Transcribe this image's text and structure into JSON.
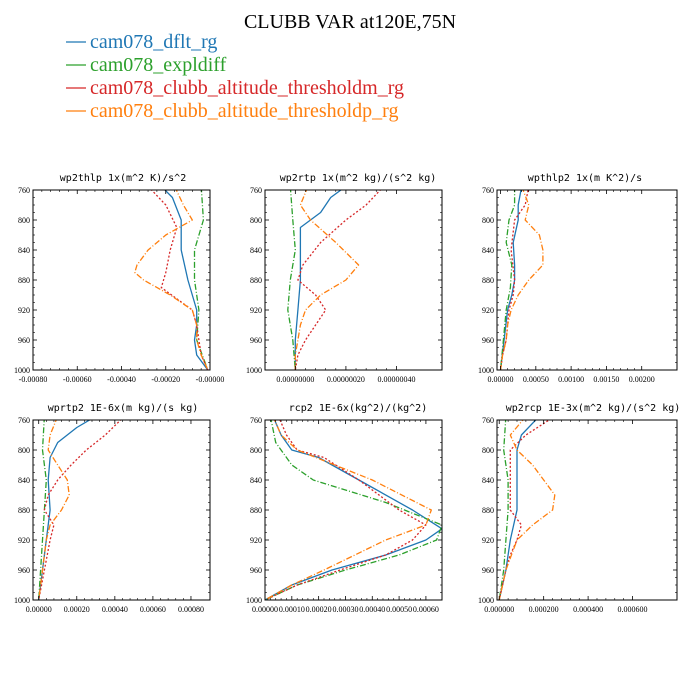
{
  "figure": {
    "title": "CLUBB VAR at120E,75N"
  },
  "legend": [
    {
      "label": "cam078_dflt_rg",
      "color": "#1f77b4",
      "dash": "solid"
    },
    {
      "label": "cam078_expldiff",
      "color": "#2ca02c",
      "dash": "dashdot"
    },
    {
      "label": "cam078_clubb_altitude_thresholdm_rg",
      "color": "#d62728",
      "dash": "dot"
    },
    {
      "label": "cam078_clubb_altitude_thresholdp_rg",
      "color": "#ff7f0e",
      "dash": "dashdot"
    }
  ],
  "chart_data": [
    {
      "type": "line",
      "title": "wp2thlp  1x(m^2 K)/s^2",
      "xlim": [
        -0.0008,
        0.0
      ],
      "ylim": [
        760,
        1000
      ],
      "y_inverted": true,
      "x_ticks": [
        -0.0008,
        -0.0006,
        -0.0004,
        -0.0002,
        0.0
      ],
      "x_tick_labels": [
        "-0.00080",
        "-0.00060",
        "-0.00040",
        "-0.00020",
        "-0.00000"
      ],
      "y_ticks": [
        760,
        800,
        840,
        880,
        920,
        960,
        1000
      ],
      "y_tick_labels": [
        "760",
        "800",
        "840",
        "880",
        "920",
        "960",
        "1000"
      ],
      "series": [
        {
          "name": "cam078_dflt_rg",
          "y": [
            755,
            770,
            800,
            840,
            880,
            920,
            940,
            960,
            980,
            1000
          ],
          "x": [
            -0.00022,
            -0.00017,
            -0.00013,
            -0.00013,
            -0.0001,
            -6e-05,
            -6e-05,
            -7e-05,
            -6e-05,
            -1e-05
          ]
        },
        {
          "name": "cam078_expldiff",
          "y": [
            755,
            800,
            840,
            880,
            920,
            960,
            1000
          ],
          "x": [
            -4e-05,
            -3e-05,
            -7e-05,
            -7e-05,
            -5e-05,
            -6e-05,
            -1e-05
          ]
        },
        {
          "name": "cam078_clubb_altitude_thresholdm_rg",
          "y": [
            755,
            780,
            810,
            840,
            870,
            890,
            905,
            920,
            940,
            960,
            980,
            1000
          ],
          "x": [
            -0.00028,
            -0.0002,
            -0.00015,
            -0.00018,
            -0.0002,
            -0.00022,
            -0.00015,
            -8e-05,
            -6e-05,
            -5e-05,
            -4e-05,
            -1e-05
          ]
        },
        {
          "name": "cam078_clubb_altitude_thresholdp_rg",
          "y": [
            755,
            780,
            800,
            820,
            840,
            860,
            870,
            880,
            900,
            920,
            940,
            960,
            980,
            1000
          ],
          "x": [
            -0.00016,
            -0.00012,
            -8e-05,
            -0.0002,
            -0.00028,
            -0.00033,
            -0.00034,
            -0.0003,
            -0.00018,
            -8e-05,
            -6e-05,
            -6e-05,
            -4e-05,
            -1e-05
          ]
        }
      ]
    },
    {
      "type": "line",
      "title": "wp2rtp  1x(m^2 kg)/(s^2 kg)",
      "xlim": [
        -1.2e-07,
        5.8e-07
      ],
      "ylim": [
        760,
        1000
      ],
      "y_inverted": true,
      "x_ticks": [
        0.0,
        2e-07,
        4e-07
      ],
      "x_tick_labels": [
        "0.00000000",
        "0.00000020",
        "0.00000040"
      ],
      "y_ticks": [
        760,
        800,
        840,
        880,
        920,
        960,
        1000
      ],
      "y_tick_labels": [
        "760",
        "800",
        "840",
        "880",
        "920",
        "960",
        "1000"
      ],
      "series": [
        {
          "name": "cam078_dflt_rg",
          "y": [
            755,
            770,
            790,
            810,
            840,
            880,
            920,
            960,
            1000
          ],
          "x": [
            2e-07,
            1.4e-07,
            1e-07,
            2e-08,
            2e-08,
            2e-08,
            1e-08,
            0.0,
            0.0
          ]
        },
        {
          "name": "cam078_expldiff",
          "y": [
            755,
            800,
            840,
            880,
            920,
            960,
            1000
          ],
          "x": [
            -2e-08,
            -1e-08,
            0.0,
            -2e-08,
            -3e-08,
            -1e-08,
            0.0
          ]
        },
        {
          "name": "cam078_clubb_altitude_thresholdm_rg",
          "y": [
            755,
            780,
            800,
            830,
            860,
            880,
            900,
            920,
            940,
            960,
            980,
            1000
          ],
          "x": [
            3.5e-07,
            2.8e-07,
            2e-07,
            1e-07,
            3e-08,
            1e-08,
            8e-08,
            1.2e-07,
            8e-08,
            4e-08,
            1e-08,
            0.0
          ]
        },
        {
          "name": "cam078_clubb_altitude_thresholdp_rg",
          "y": [
            755,
            780,
            800,
            830,
            860,
            880,
            900,
            920,
            940,
            960,
            980,
            1000
          ],
          "x": [
            5e-08,
            2e-08,
            6e-08,
            1.6e-07,
            2.5e-07,
            2e-07,
            1e-07,
            4e-08,
            2e-08,
            1e-08,
            0.0,
            0.0
          ]
        }
      ]
    },
    {
      "type": "line",
      "title": "wpthlp2  1x(m K^2)/s",
      "xlim": [
        -5e-05,
        0.0025
      ],
      "ylim": [
        760,
        1000
      ],
      "y_inverted": true,
      "x_ticks": [
        0.0,
        0.0005,
        0.001,
        0.0015,
        0.002
      ],
      "x_tick_labels": [
        "0.00000",
        "0.00050",
        "0.00100",
        "0.00150",
        "0.00200"
      ],
      "y_ticks": [
        760,
        800,
        840,
        880,
        920,
        960,
        1000
      ],
      "y_tick_labels": [
        "760",
        "800",
        "840",
        "880",
        "920",
        "960",
        "1000"
      ],
      "series": [
        {
          "name": "cam078_dflt_rg",
          "y": [
            755,
            780,
            800,
            830,
            860,
            880,
            900,
            920,
            960,
            1000
          ],
          "x": [
            0.0003,
            0.00025,
            0.00025,
            0.00018,
            0.0002,
            0.0002,
            0.00016,
            0.0001,
            5e-05,
            0.0
          ]
        },
        {
          "name": "cam078_expldiff",
          "y": [
            755,
            780,
            800,
            830,
            860,
            890,
            920,
            960,
            1000
          ],
          "x": [
            0.0002,
            0.0002,
            0.00012,
            8e-05,
            0.00016,
            0.00014,
            8e-05,
            4e-05,
            0.0
          ]
        },
        {
          "name": "cam078_clubb_altitude_thresholdm_rg",
          "y": [
            755,
            780,
            800,
            840,
            880,
            900,
            920,
            940,
            960,
            980,
            1000
          ],
          "x": [
            0.0004,
            0.00035,
            0.0002,
            0.00015,
            0.0002,
            0.00018,
            0.00012,
            0.0001,
            8e-05,
            3e-05,
            0.0
          ]
        },
        {
          "name": "cam078_clubb_altitude_thresholdp_rg",
          "y": [
            755,
            780,
            800,
            820,
            840,
            860,
            880,
            900,
            920,
            940,
            960,
            980,
            1000
          ],
          "x": [
            0.0003,
            0.0004,
            0.00035,
            0.00055,
            0.0006,
            0.0006,
            0.0004,
            0.00025,
            0.00015,
            0.0001,
            8e-05,
            3e-05,
            0.0
          ]
        }
      ]
    },
    {
      "type": "line",
      "title": "wprtp2  1E-6x(m kg)/(s kg)",
      "xlim": [
        -3e-05,
        0.0009
      ],
      "ylim": [
        760,
        1000
      ],
      "y_inverted": true,
      "x_ticks": [
        0.0,
        0.0002,
        0.0004,
        0.0006,
        0.0008
      ],
      "x_tick_labels": [
        "0.00000",
        "0.00020",
        "0.00040",
        "0.00060",
        "0.00080"
      ],
      "y_ticks": [
        760,
        800,
        840,
        880,
        920,
        960,
        1000
      ],
      "y_tick_labels": [
        "760",
        "800",
        "840",
        "880",
        "920",
        "960",
        "1000"
      ],
      "series": [
        {
          "name": "cam078_dflt_rg",
          "y": [
            755,
            770,
            790,
            810,
            840,
            880,
            920,
            960,
            1000
          ],
          "x": [
            0.0003,
            0.0002,
            0.0001,
            6e-05,
            5e-05,
            6e-05,
            4e-05,
            2e-05,
            0.0
          ]
        },
        {
          "name": "cam078_expldiff",
          "y": [
            755,
            800,
            840,
            880,
            920,
            960,
            1000
          ],
          "x": [
            3e-05,
            2e-05,
            4e-05,
            3e-05,
            2e-05,
            1e-05,
            0.0
          ]
        },
        {
          "name": "cam078_clubb_altitude_thresholdm_rg",
          "y": [
            755,
            780,
            800,
            820,
            840,
            860,
            880,
            900,
            920,
            960,
            1000
          ],
          "x": [
            0.00045,
            0.00035,
            0.00025,
            0.00017,
            0.0001,
            5e-05,
            3e-05,
            8e-05,
            6e-05,
            3e-05,
            0.0
          ]
        },
        {
          "name": "cam078_clubb_altitude_thresholdp_rg",
          "y": [
            755,
            780,
            800,
            820,
            840,
            860,
            880,
            900,
            920,
            960,
            1000
          ],
          "x": [
            0.0001,
            6e-05,
            5e-05,
            0.0001,
            0.00015,
            0.00016,
            0.00012,
            6e-05,
            4e-05,
            2e-05,
            0.0
          ]
        }
      ]
    },
    {
      "type": "line",
      "title": "rcp2  1E-6x(kg^2)/(kg^2)",
      "xlim": [
        0.0,
        0.00066
      ],
      "ylim": [
        760,
        1000
      ],
      "y_inverted": true,
      "x_ticks": [
        0.0,
        0.0001,
        0.0002,
        0.0003,
        0.0004,
        0.0005,
        0.0006
      ],
      "x_tick_labels": [
        "0.00000",
        "0.00010",
        "0.00020",
        "0.00030",
        "0.00040",
        "0.00050",
        "0.00060"
      ],
      "y_ticks": [
        760,
        800,
        840,
        880,
        920,
        960,
        1000
      ],
      "y_tick_labels": [
        "760",
        "800",
        "840",
        "880",
        "920",
        "960",
        "1000"
      ],
      "series": [
        {
          "name": "cam078_dflt_rg",
          "y": [
            755,
            780,
            800,
            810,
            840,
            880,
            905,
            920,
            940,
            960,
            980,
            1000
          ],
          "x": [
            3e-05,
            6e-05,
            0.0001,
            0.0002,
            0.00035,
            0.00055,
            0.00066,
            0.0006,
            0.00045,
            0.00025,
            0.0001,
            0.0
          ]
        },
        {
          "name": "cam078_expldiff",
          "y": [
            755,
            790,
            820,
            840,
            870,
            900,
            920,
            940,
            960,
            980,
            1000
          ],
          "x": [
            2e-05,
            4e-05,
            0.0001,
            0.00018,
            0.00045,
            0.00066,
            0.00064,
            0.0005,
            0.0003,
            0.00012,
            0.0
          ]
        },
        {
          "name": "cam078_clubb_altitude_thresholdm_rg",
          "y": [
            755,
            780,
            800,
            810,
            840,
            880,
            900,
            920,
            940,
            960,
            980,
            1000
          ],
          "x": [
            5e-05,
            8e-05,
            0.00012,
            0.00022,
            0.00035,
            0.0005,
            0.0006,
            0.00055,
            0.00045,
            0.00028,
            0.00012,
            0.0
          ]
        },
        {
          "name": "cam078_clubb_altitude_thresholdp_rg",
          "y": [
            755,
            780,
            800,
            840,
            880,
            900,
            920,
            960,
            980,
            1000
          ],
          "x": [
            3e-05,
            6e-05,
            0.00012,
            0.0004,
            0.00062,
            0.0006,
            0.00045,
            0.00022,
            0.0001,
            0.0
          ]
        }
      ]
    },
    {
      "type": "line",
      "title": "wp2rcp  1E-3x(m^2 kg)/(s^2 kg)",
      "xlim": [
        -1e-05,
        0.0008
      ],
      "ylim": [
        760,
        1000
      ],
      "y_inverted": true,
      "x_ticks": [
        0.0,
        0.0002,
        0.0004,
        0.0006
      ],
      "x_tick_labels": [
        "0.000000",
        "0.000200",
        "0.000400",
        "0.000600"
      ],
      "y_ticks": [
        760,
        800,
        840,
        880,
        920,
        960,
        1000
      ],
      "y_tick_labels": [
        "760",
        "800",
        "840",
        "880",
        "920",
        "960",
        "1000"
      ],
      "series": [
        {
          "name": "cam078_dflt_rg",
          "y": [
            755,
            780,
            800,
            840,
            880,
            920,
            960,
            1000
          ],
          "x": [
            0.00018,
            0.0001,
            8e-05,
            8e-05,
            8e-05,
            5e-05,
            3e-05,
            0.0
          ]
        },
        {
          "name": "cam078_expldiff",
          "y": [
            755,
            800,
            840,
            880,
            920,
            960,
            1000
          ],
          "x": [
            3e-05,
            2e-05,
            4e-05,
            4e-05,
            3e-05,
            2e-05,
            0.0
          ]
        },
        {
          "name": "cam078_clubb_altitude_thresholdm_rg",
          "y": [
            755,
            780,
            800,
            840,
            880,
            900,
            920,
            940,
            960,
            1000
          ],
          "x": [
            0.00025,
            0.00012,
            5e-05,
            5e-05,
            5e-05,
            0.0001,
            8e-05,
            5e-05,
            3e-05,
            0.0
          ]
        },
        {
          "name": "cam078_clubb_altitude_thresholdp_rg",
          "y": [
            755,
            780,
            800,
            820,
            840,
            860,
            880,
            900,
            920,
            960,
            1000
          ],
          "x": [
            0.00012,
            5e-05,
            8e-05,
            0.00015,
            0.0002,
            0.00025,
            0.00024,
            0.00015,
            8e-05,
            3e-05,
            0.0
          ]
        }
      ]
    }
  ]
}
